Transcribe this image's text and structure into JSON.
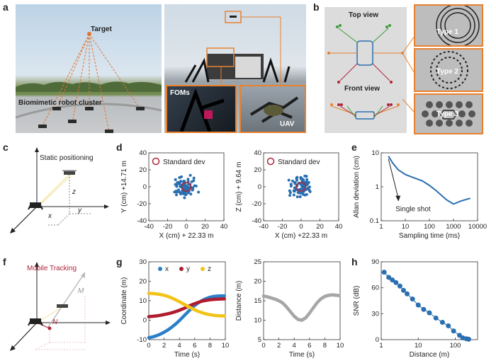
{
  "panels": {
    "a": {
      "label": "a",
      "target_label": "Target",
      "cluster_label": "Biomimetic robot cluster",
      "foms_label": "FOMs",
      "uav_label": "UAV"
    },
    "b": {
      "label": "b",
      "top_view": "Top view",
      "front_view": "Front view",
      "types": [
        "Type 1",
        "Type 2",
        "Type 3"
      ]
    },
    "c": {
      "label": "c",
      "title": "Static positioning",
      "axes": {
        "x": "x",
        "y": "y",
        "z": "z"
      }
    },
    "d": {
      "label": "d",
      "charts": [
        {
          "legend": "Standard dev",
          "xlabel": "X (cm) + 22.33 m",
          "ylabel": "Y (cm) +14.71 m",
          "xticks": [
            "-40",
            "-20",
            "0",
            "20",
            "40"
          ],
          "yticks": [
            "-40",
            "-20",
            "0",
            "20",
            "40"
          ]
        },
        {
          "legend": "Standard dev",
          "xlabel": "X (cm) +22.33 m",
          "ylabel": "Z (cm) + 9.64 m",
          "xticks": [
            "-40",
            "-20",
            "0",
            "20",
            "40"
          ],
          "yticks": [
            "-40",
            "-20",
            "0",
            "20",
            "40"
          ]
        }
      ]
    },
    "e": {
      "label": "e",
      "xlabel": "Sampling time (ms)",
      "ylabel": "Allan deviation (cm)",
      "xticks": [
        "1",
        "10",
        "100",
        "1000",
        "10000"
      ],
      "yticks": [
        "0.1",
        "1",
        "10"
      ],
      "annotation": "Single shot"
    },
    "f": {
      "label": "f",
      "title": "Mobile Tracking",
      "point_m": "M",
      "point_n": "N"
    },
    "g": {
      "label": "g",
      "charts": [
        {
          "xlabel": "Time (s)",
          "ylabel": "Coordinate (m)",
          "xticks": [
            "0",
            "2",
            "4",
            "6",
            "8",
            "10"
          ],
          "yticks": [
            "-10",
            "0",
            "10",
            "20",
            "30"
          ],
          "legend": [
            "x",
            "y",
            "z"
          ]
        },
        {
          "xlabel": "Time (s)",
          "ylabel": "Distance (m)",
          "xticks": [
            "0",
            "2",
            "4",
            "6",
            "8",
            "10"
          ],
          "yticks": [
            "5",
            "10",
            "15",
            "20",
            "25"
          ]
        }
      ]
    },
    "h": {
      "label": "h",
      "xlabel": "Distance (m)",
      "ylabel": "SNR (dB)",
      "xticks": [
        "1",
        "10",
        "100"
      ],
      "yticks": [
        "0",
        "30",
        "60",
        "90"
      ]
    }
  },
  "colors": {
    "x": "#2a7fc9",
    "y": "#b01c2e",
    "z": "#f2c418",
    "gray": "#a6a6a6",
    "blue": "#2a6fb0",
    "orange": "#e8812e",
    "red": "#b0243a"
  },
  "chart_data": [
    {
      "type": "scatter",
      "xlabel": "X (cm) + 22.33 m",
      "ylabel": "Y (cm) +14.71 m",
      "xlim": [
        -40,
        40
      ],
      "ylim": [
        -40,
        40
      ],
      "series": [
        {
          "name": "Standard dev",
          "x": [
            0
          ],
          "y": [
            0
          ]
        }
      ],
      "note_std_circle_radius": 5
    },
    {
      "type": "scatter",
      "xlabel": "X (cm) +22.33 m",
      "ylabel": "Z (cm) + 9.64 m",
      "xlim": [
        -40,
        40
      ],
      "ylim": [
        -40,
        40
      ],
      "series": [
        {
          "name": "Standard dev",
          "x": [
            0
          ],
          "y": [
            0
          ]
        }
      ]
    },
    {
      "type": "line",
      "xlabel": "Sampling time (ms)",
      "ylabel": "Allan deviation (cm)",
      "log_x": true,
      "log_y": true,
      "xlim": [
        1,
        10000
      ],
      "ylim": [
        0.1,
        10
      ],
      "x": [
        2,
        3,
        5,
        10,
        20,
        50,
        100,
        200,
        500,
        1000,
        2000,
        5000
      ],
      "y": [
        8,
        5,
        3.2,
        2.3,
        1.9,
        1.5,
        1.1,
        0.75,
        0.42,
        0.31,
        0.38,
        0.46
      ]
    },
    {
      "type": "scatter",
      "xlabel": "Time (s)",
      "ylabel": "Coordinate (m)",
      "xlim": [
        0,
        10
      ],
      "ylim": [
        -10,
        30
      ],
      "x": [
        0,
        0.5,
        1,
        1.5,
        2,
        2.5,
        3,
        3.5,
        4,
        4.5,
        5,
        5.5,
        6,
        6.5,
        7,
        7.5,
        8,
        8.5,
        9,
        9.5,
        10
      ],
      "series": [
        {
          "name": "x",
          "values": [
            -9,
            -8.6,
            -8,
            -7.2,
            -6.2,
            -5,
            -3.6,
            -2,
            -0.2,
            1.8,
            3.8,
            5.8,
            7.6,
            9,
            10.2,
            11.1,
            11.8,
            12.2,
            12.4,
            12.5,
            12.5
          ]
        },
        {
          "name": "y",
          "values": [
            1.8,
            2,
            2.2,
            2.5,
            2.9,
            3.3,
            3.8,
            4.4,
            5.1,
            5.9,
            6.8,
            7.7,
            8.5,
            9.2,
            9.8,
            10.2,
            10.5,
            10.7,
            10.8,
            10.9,
            11
          ]
        },
        {
          "name": "z",
          "values": [
            13.8,
            13.7,
            13.5,
            13.2,
            12.8,
            12.2,
            11.4,
            10.5,
            9.5,
            8.4,
            7.3,
            6.3,
            5.3,
            4.5,
            3.8,
            3.2,
            2.8,
            2.5,
            2.3,
            2.2,
            2.2
          ]
        }
      ]
    },
    {
      "type": "scatter",
      "xlabel": "Time (s)",
      "ylabel": "Distance (m)",
      "xlim": [
        0,
        10
      ],
      "ylim": [
        5,
        25
      ],
      "x": [
        0,
        0.5,
        1,
        1.5,
        2,
        2.5,
        3,
        3.5,
        4,
        4.5,
        5,
        5.5,
        6,
        6.5,
        7,
        7.5,
        8,
        8.5,
        9,
        9.5,
        10
      ],
      "values": [
        16.2,
        16,
        15.7,
        15.4,
        15,
        14.4,
        13.4,
        12.2,
        11,
        10.2,
        10,
        10.6,
        11.8,
        13.2,
        14.5,
        15.5,
        16.1,
        16.4,
        16.5,
        16.4,
        16.3
      ]
    },
    {
      "type": "line",
      "xlabel": "Distance (m)",
      "ylabel": "SNR (dB)",
      "log_x": true,
      "xlim": [
        1,
        400
      ],
      "ylim": [
        0,
        90
      ],
      "x": [
        1.2,
        1.6,
        2,
        2.5,
        3.2,
        4,
        5,
        7,
        10,
        14,
        20,
        30,
        45,
        65,
        90,
        130,
        160,
        200,
        230
      ],
      "values": [
        78,
        72,
        69,
        66,
        62,
        57,
        53,
        47,
        40,
        35,
        31,
        25,
        20,
        16,
        10,
        5,
        2,
        1,
        0.5
      ]
    }
  ]
}
